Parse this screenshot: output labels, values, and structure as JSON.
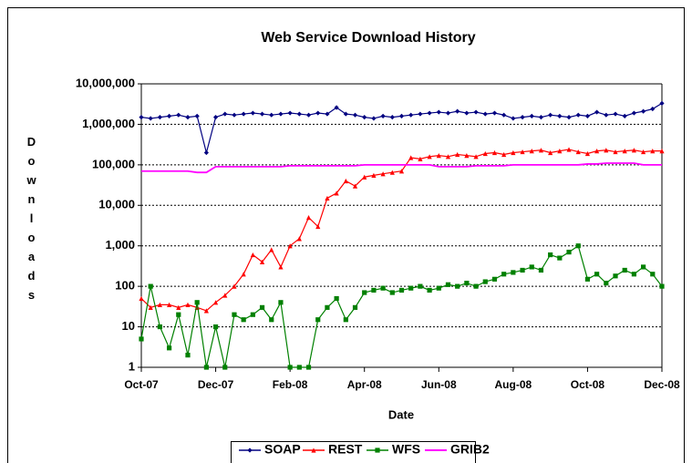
{
  "chart_data": {
    "type": "line",
    "title": "Web Service Download History",
    "x_label": "Date",
    "y_label": "Downloads",
    "log_scale": true,
    "grid": true,
    "legend": "bottom",
    "ylim": [
      1,
      10000000
    ],
    "yticks": [
      1,
      10,
      100,
      {
        "value": 1000,
        "label": "1,000"
      },
      {
        "value": 10000,
        "label": "10,000"
      },
      {
        "value": 100000,
        "label": "100,000"
      },
      {
        "value": 1000000,
        "label": "1,000,000"
      },
      {
        "value": 10000000,
        "label": "10,000,000"
      }
    ],
    "categories": [
      "Oct-07",
      null,
      null,
      null,
      null,
      null,
      null,
      null,
      "Dec-07",
      null,
      null,
      null,
      null,
      null,
      null,
      null,
      "Feb-08",
      null,
      null,
      null,
      null,
      null,
      null,
      null,
      "Apr-08",
      null,
      null,
      null,
      null,
      null,
      null,
      null,
      "Jun-08",
      null,
      null,
      null,
      null,
      null,
      null,
      null,
      "Aug-08",
      null,
      null,
      null,
      null,
      null,
      null,
      null,
      "Oct-08",
      null,
      null,
      null,
      null,
      null,
      null,
      null,
      "Dec-08"
    ],
    "series": [
      {
        "name": "SOAP",
        "color": "#000080",
        "marker": "diamond",
        "values": [
          1500000,
          1400000,
          1500000,
          1600000,
          1700000,
          1500000,
          1600000,
          200000,
          1500000,
          1800000,
          1700000,
          1800000,
          1900000,
          1800000,
          1700000,
          1800000,
          1900000,
          1800000,
          1700000,
          1900000,
          1800000,
          2600000,
          1800000,
          1700000,
          1500000,
          1400000,
          1600000,
          1500000,
          1600000,
          1700000,
          1800000,
          1900000,
          2000000,
          1900000,
          2100000,
          1900000,
          2000000,
          1800000,
          1900000,
          1700000,
          1400000,
          1500000,
          1600000,
          1500000,
          1700000,
          1600000,
          1500000,
          1700000,
          1600000,
          2000000,
          1700000,
          1800000,
          1600000,
          1900000,
          2100000,
          2400000,
          3300000
        ]
      },
      {
        "name": "REST",
        "color": "#ff0000",
        "marker": "triangle",
        "values": [
          50,
          30,
          35,
          35,
          30,
          35,
          30,
          25,
          40,
          60,
          100,
          200,
          600,
          400,
          800,
          300,
          1000,
          1500,
          5000,
          3000,
          15000,
          20000,
          40000,
          30000,
          50000,
          55000,
          60000,
          65000,
          70000,
          150000,
          140000,
          160000,
          170000,
          160000,
          180000,
          170000,
          160000,
          190000,
          200000,
          180000,
          200000,
          210000,
          220000,
          230000,
          200000,
          220000,
          240000,
          210000,
          190000,
          220000,
          230000,
          210000,
          220000,
          230000,
          210000,
          220000,
          220000
        ]
      },
      {
        "name": "WFS",
        "color": "#008000",
        "marker": "square",
        "values": [
          5,
          100,
          10,
          3,
          20,
          2,
          40,
          1,
          10,
          1,
          20,
          15,
          20,
          30,
          15,
          40,
          1,
          1,
          1,
          15,
          30,
          50,
          15,
          30,
          70,
          80,
          90,
          70,
          80,
          90,
          100,
          80,
          90,
          110,
          100,
          120,
          100,
          130,
          150,
          200,
          220,
          250,
          300,
          250,
          600,
          500,
          700,
          1000,
          150,
          200,
          120,
          180,
          250,
          200,
          300,
          200,
          100
        ]
      },
      {
        "name": "GRIB2",
        "color": "#ff00ff",
        "marker": "none",
        "values": [
          70000,
          70000,
          70000,
          70000,
          70000,
          70000,
          65000,
          65000,
          90000,
          90000,
          90000,
          90000,
          90000,
          90000,
          90000,
          90000,
          95000,
          95000,
          95000,
          95000,
          95000,
          95000,
          95000,
          95000,
          100000,
          100000,
          100000,
          100000,
          100000,
          100000,
          100000,
          100000,
          90000,
          90000,
          90000,
          90000,
          95000,
          95000,
          95000,
          95000,
          100000,
          100000,
          100000,
          100000,
          100000,
          100000,
          100000,
          100000,
          105000,
          105000,
          110000,
          110000,
          110000,
          110000,
          100000,
          100000,
          100000
        ]
      }
    ]
  }
}
